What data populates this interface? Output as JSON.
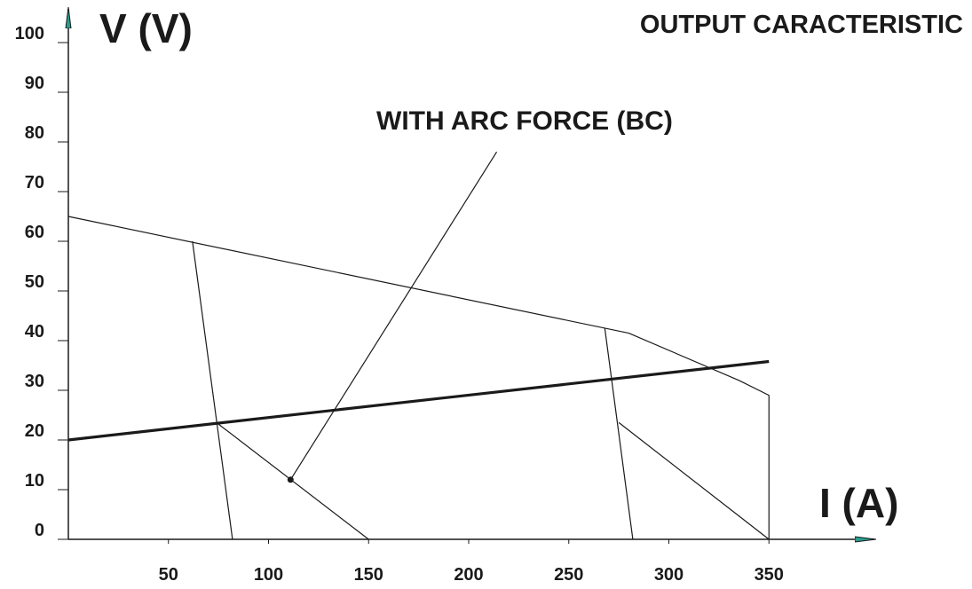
{
  "chart_data": {
    "type": "line",
    "title": "OUTPUT CARACTERISTIC",
    "xlabel": "I (A)",
    "ylabel": "V (V)",
    "xlim": [
      0,
      400
    ],
    "ylim": [
      0,
      100
    ],
    "x_ticks": [
      "50",
      "100",
      "150",
      "200",
      "250",
      "300",
      "350"
    ],
    "y_ticks": [
      "0",
      "10",
      "20",
      "30",
      "40",
      "50",
      "60",
      "70",
      "80",
      "90",
      "100"
    ],
    "grid": false,
    "colors": {
      "lines": "#1a1a1a",
      "axis": "#1a1a1a",
      "arrow_fill": "#2a9d8f"
    },
    "series": [
      {
        "points": [
          [
            0,
            65
          ],
          [
            280,
            41.5
          ],
          [
            335,
            32
          ],
          [
            350,
            29
          ],
          [
            350,
            0
          ]
        ]
      },
      {
        "points": [
          [
            0,
            20
          ],
          [
            350,
            35.8
          ]
        ]
      },
      {
        "points": [
          [
            62,
            60
          ],
          [
            82,
            0
          ]
        ]
      },
      {
        "points": [
          [
            74,
            23.5
          ],
          [
            150,
            0
          ]
        ]
      },
      {
        "points": [
          [
            268,
            42.5
          ],
          [
            282,
            0
          ]
        ]
      },
      {
        "points": [
          [
            275,
            23.5
          ],
          [
            350,
            0
          ]
        ]
      },
      {
        "points": [
          [
            111,
            12
          ],
          [
            214,
            78
          ]
        ]
      }
    ],
    "annotations": [
      {
        "text": "WITH ARC FORCE (BC)",
        "x": 111,
        "y": 12
      }
    ]
  }
}
